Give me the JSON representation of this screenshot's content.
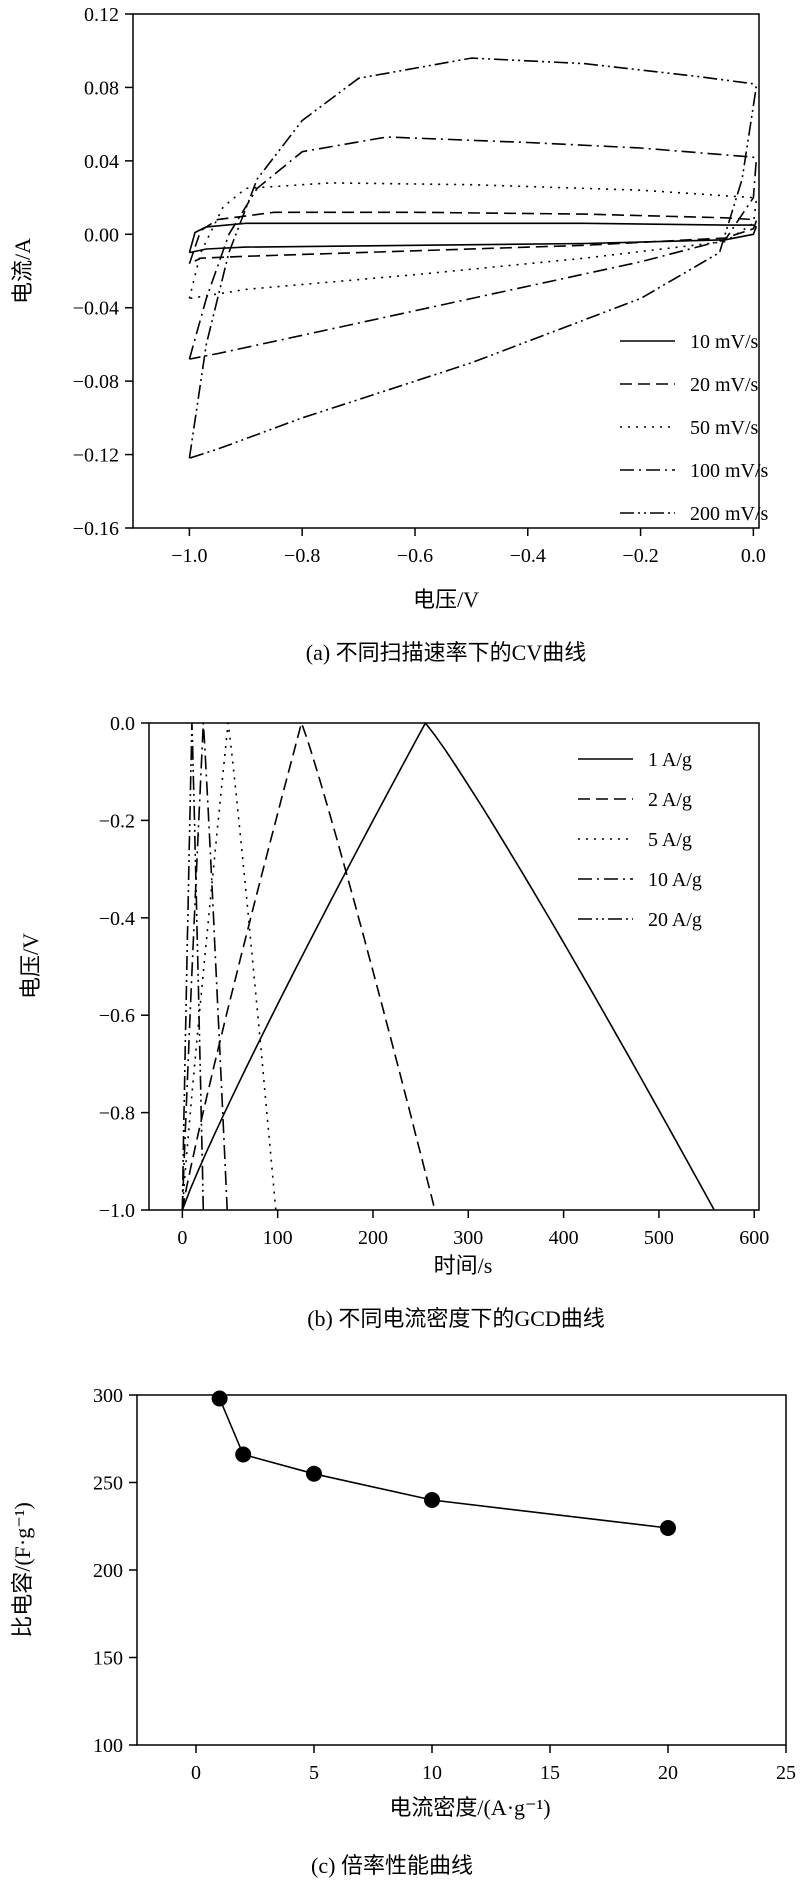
{
  "chart_data": [
    {
      "type": "line",
      "caption": "(a) 不同扫描速率下的CV曲线",
      "xlabel": "电压/V",
      "ylabel": "电流/A",
      "xlim": [
        -1.1,
        0.01
      ],
      "ylim": [
        -0.16,
        0.12
      ],
      "xticks": [
        -1.0,
        -0.8,
        -0.6,
        -0.4,
        -0.2,
        0.0
      ],
      "xtick_labels": [
        "−1.0",
        "−0.8",
        "−0.6",
        "−0.4",
        "−0.2",
        "0.0"
      ],
      "yticks": [
        -0.16,
        -0.12,
        -0.08,
        -0.04,
        0.0,
        0.04,
        0.08,
        0.12
      ],
      "ytick_labels": [
        "−0.16",
        "−0.12",
        "−0.08",
        "−0.04",
        "0.00",
        "0.04",
        "0.08",
        "0.12"
      ],
      "legend_position": "bottom-right",
      "series": [
        {
          "name": "10 mV/s",
          "dash": "solid",
          "upper": [
            [
              -1.0,
              -0.01
            ],
            [
              -0.99,
              0.001
            ],
            [
              -0.97,
              0.004
            ],
            [
              -0.9,
              0.006
            ],
            [
              -0.6,
              0.006
            ],
            [
              -0.3,
              0.006
            ],
            [
              -0.05,
              0.005
            ],
            [
              0.0,
              0.005
            ],
            [
              0.005,
              0.004
            ]
          ],
          "lower": [
            [
              0.005,
              0.004
            ],
            [
              0.0,
              0.0
            ],
            [
              -0.05,
              -0.003
            ],
            [
              -0.3,
              -0.005
            ],
            [
              -0.6,
              -0.006
            ],
            [
              -0.9,
              -0.007
            ],
            [
              -0.97,
              -0.008
            ],
            [
              -1.0,
              -0.01
            ]
          ]
        },
        {
          "name": "20 mV/s",
          "dash": "dashed",
          "upper": [
            [
              -1.0,
              -0.016
            ],
            [
              -0.98,
              0.002
            ],
            [
              -0.95,
              0.008
            ],
            [
              -0.85,
              0.012
            ],
            [
              -0.6,
              0.012
            ],
            [
              -0.3,
              0.011
            ],
            [
              -0.05,
              0.009
            ],
            [
              0.0,
              0.008
            ],
            [
              0.005,
              0.007
            ]
          ],
          "lower": [
            [
              0.005,
              0.007
            ],
            [
              0.0,
              0.003
            ],
            [
              -0.05,
              -0.002
            ],
            [
              -0.3,
              -0.006
            ],
            [
              -0.6,
              -0.009
            ],
            [
              -0.9,
              -0.012
            ],
            [
              -0.98,
              -0.013
            ],
            [
              -1.0,
              -0.016
            ]
          ]
        },
        {
          "name": "50 mV/s",
          "dash": "dotted",
          "upper": [
            [
              -1.0,
              -0.035
            ],
            [
              -0.98,
              -0.01
            ],
            [
              -0.94,
              0.015
            ],
            [
              -0.9,
              0.025
            ],
            [
              -0.75,
              0.028
            ],
            [
              -0.5,
              0.027
            ],
            [
              -0.2,
              0.024
            ],
            [
              0.0,
              0.02
            ],
            [
              0.005,
              0.018
            ]
          ],
          "lower": [
            [
              0.005,
              0.018
            ],
            [
              0.0,
              0.006
            ],
            [
              -0.05,
              -0.004
            ],
            [
              -0.3,
              -0.013
            ],
            [
              -0.6,
              -0.022
            ],
            [
              -0.9,
              -0.03
            ],
            [
              -0.98,
              -0.034
            ],
            [
              -1.0,
              -0.035
            ]
          ]
        },
        {
          "name": "100 mV/s",
          "dash": "dashdot",
          "upper": [
            [
              -1.0,
              -0.068
            ],
            [
              -0.97,
              -0.035
            ],
            [
              -0.93,
              0.0
            ],
            [
              -0.88,
              0.025
            ],
            [
              -0.8,
              0.045
            ],
            [
              -0.65,
              0.053
            ],
            [
              -0.4,
              0.05
            ],
            [
              -0.2,
              0.047
            ],
            [
              0.0,
              0.042
            ],
            [
              0.005,
              0.04
            ]
          ],
          "lower": [
            [
              0.005,
              0.04
            ],
            [
              0.0,
              0.02
            ],
            [
              -0.05,
              -0.003
            ],
            [
              -0.2,
              -0.015
            ],
            [
              -0.5,
              -0.035
            ],
            [
              -0.8,
              -0.055
            ],
            [
              -0.95,
              -0.065
            ],
            [
              -1.0,
              -0.068
            ]
          ]
        },
        {
          "name": "200 mV/s",
          "dash": "dashdotdot",
          "upper": [
            [
              -1.0,
              -0.122
            ],
            [
              -0.97,
              -0.06
            ],
            [
              -0.93,
              -0.01
            ],
            [
              -0.88,
              0.03
            ],
            [
              -0.8,
              0.062
            ],
            [
              -0.7,
              0.085
            ],
            [
              -0.5,
              0.096
            ],
            [
              -0.3,
              0.093
            ],
            [
              -0.1,
              0.086
            ],
            [
              0.0,
              0.082
            ],
            [
              0.005,
              0.08
            ]
          ],
          "lower": [
            [
              0.005,
              0.08
            ],
            [
              -0.02,
              0.03
            ],
            [
              -0.06,
              -0.01
            ],
            [
              -0.2,
              -0.035
            ],
            [
              -0.5,
              -0.07
            ],
            [
              -0.8,
              -0.1
            ],
            [
              -0.95,
              -0.117
            ],
            [
              -1.0,
              -0.122
            ]
          ]
        }
      ]
    },
    {
      "type": "line",
      "caption": "(b) 不同电流密度下的GCD曲线",
      "xlabel": "时间/s",
      "ylabel": "电压/V",
      "xlim": [
        -35,
        605
      ],
      "ylim": [
        -1.0,
        0.0
      ],
      "xticks": [
        0,
        100,
        200,
        300,
        400,
        500,
        600
      ],
      "xtick_labels": [
        "0",
        "100",
        "200",
        "300",
        "400",
        "500",
        "600"
      ],
      "yticks": [
        -1.0,
        -0.8,
        -0.6,
        -0.4,
        -0.2,
        0.0
      ],
      "ytick_labels": [
        "−1.0",
        "−0.8",
        "−0.6",
        "−0.4",
        "−0.2",
        "0.0"
      ],
      "legend_position": "top-right",
      "series": [
        {
          "name": "1 A/g",
          "dash": "solid",
          "charge_end": 255,
          "discharge_end": 558
        },
        {
          "name": "2 A/g",
          "dash": "dashed",
          "charge_end": 125,
          "discharge_end": 265
        },
        {
          "name": "5 A/g",
          "dash": "dotted",
          "charge_end": 48,
          "discharge_end": 98
        },
        {
          "name": "10 A/g",
          "dash": "dashdot",
          "charge_end": 22,
          "discharge_end": 47
        },
        {
          "name": "20 A/g",
          "dash": "dashdotdot",
          "charge_end": 10,
          "discharge_end": 22
        }
      ]
    },
    {
      "type": "scatter",
      "caption": "(c) 倍率性能曲线",
      "xlabel": "电流密度/(A·g⁻¹)",
      "ylabel": "比电容/(F·g⁻¹)",
      "xlim": [
        -2.5,
        25
      ],
      "ylim": [
        100,
        300
      ],
      "xticks": [
        0,
        5,
        10,
        15,
        20,
        25
      ],
      "xtick_labels": [
        "0",
        "5",
        "10",
        "15",
        "20",
        "25"
      ],
      "yticks": [
        100,
        150,
        200,
        250,
        300
      ],
      "ytick_labels": [
        "100",
        "150",
        "200",
        "250",
        "300"
      ],
      "x": [
        1,
        2,
        5,
        10,
        20
      ],
      "y": [
        298,
        266,
        255,
        240,
        224
      ]
    }
  ]
}
